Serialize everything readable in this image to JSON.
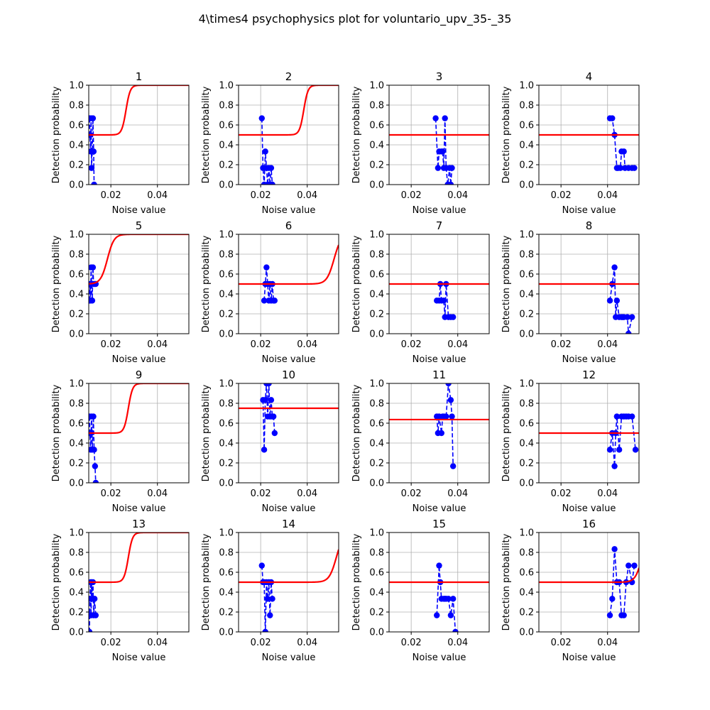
{
  "figure": {
    "suptitle": "4\\times4 psychophysics plot for voluntario_upv_35-_35"
  },
  "chart_data": {
    "type": "line",
    "layout": "4x4 grid",
    "xlabel": "Noise value",
    "ylabel": "Detection probability",
    "xlim": [
      0.0105,
      0.0535
    ],
    "ylim": [
      0,
      1
    ],
    "xticks": [
      "0.02",
      "0.04"
    ],
    "yticks": [
      "0.0",
      "0.2",
      "0.4",
      "0.6",
      "0.8",
      "1.0"
    ],
    "grid": true,
    "colors": {
      "observed": "#0000ff",
      "fit": "#ff0000",
      "grid": "#b0b0b0"
    },
    "observed_style": "blue dashed line with circle markers",
    "fit_style": "red solid sigmoid curve",
    "panels": [
      {
        "title": "1",
        "observed": [
          [
            0.0108,
            0.667
          ],
          [
            0.011,
            0.5
          ],
          [
            0.0113,
            0.333
          ],
          [
            0.0115,
            0.667
          ],
          [
            0.0117,
            0.167
          ],
          [
            0.012,
            0.333
          ],
          [
            0.0123,
            0.667
          ],
          [
            0.0126,
            0.333
          ],
          [
            0.0128,
            0.0
          ]
        ],
        "fit": {
          "base": 0.5,
          "top": 1.0,
          "mid": 0.0265,
          "slope": 1100
        }
      },
      {
        "title": "2",
        "observed": [
          [
            0.0205,
            0.667
          ],
          [
            0.021,
            0.167
          ],
          [
            0.0215,
            0.0
          ],
          [
            0.022,
            0.333
          ],
          [
            0.0225,
            0.167
          ],
          [
            0.023,
            0.0
          ],
          [
            0.0235,
            0.167
          ],
          [
            0.024,
            0.0
          ],
          [
            0.0245,
            0.167
          ],
          [
            0.025,
            0.0
          ]
        ],
        "fit": {
          "base": 0.5,
          "top": 1.0,
          "mid": 0.0385,
          "slope": 1100
        }
      },
      {
        "title": "3",
        "observed": [
          [
            0.0305,
            0.667
          ],
          [
            0.0315,
            0.167
          ],
          [
            0.032,
            0.333
          ],
          [
            0.033,
            0.333
          ],
          [
            0.0335,
            0.333
          ],
          [
            0.034,
            0.167
          ],
          [
            0.0345,
            0.667
          ],
          [
            0.035,
            0.167
          ],
          [
            0.0357,
            0.0
          ],
          [
            0.0365,
            0.167
          ],
          [
            0.037,
            0.0
          ],
          [
            0.0375,
            0.167
          ]
        ],
        "fit": {
          "base": 0.5,
          "top": 0.5,
          "mid": 0.03,
          "slope": 0
        }
      },
      {
        "title": "4",
        "observed": [
          [
            0.041,
            0.667
          ],
          [
            0.042,
            0.667
          ],
          [
            0.043,
            0.5
          ],
          [
            0.044,
            0.167
          ],
          [
            0.0445,
            0.167
          ],
          [
            0.0455,
            0.167
          ],
          [
            0.046,
            0.333
          ],
          [
            0.047,
            0.333
          ],
          [
            0.0475,
            0.167
          ],
          [
            0.049,
            0.167
          ],
          [
            0.0505,
            0.167
          ],
          [
            0.0515,
            0.167
          ]
        ],
        "fit": {
          "base": 0.5,
          "top": 0.5,
          "mid": 0.03,
          "slope": 0
        }
      },
      {
        "title": "5",
        "observed": [
          [
            0.0108,
            0.333
          ],
          [
            0.011,
            0.5
          ],
          [
            0.0113,
            0.333
          ],
          [
            0.0115,
            0.667
          ],
          [
            0.0117,
            0.5
          ],
          [
            0.012,
            0.333
          ],
          [
            0.0123,
            0.667
          ],
          [
            0.0126,
            0.5
          ],
          [
            0.013,
            0.5
          ],
          [
            0.0135,
            0.5
          ]
        ],
        "fit": {
          "base": 0.5,
          "top": 1.0,
          "mid": 0.0185,
          "slope": 700
        }
      },
      {
        "title": "6",
        "observed": [
          [
            0.0215,
            0.333
          ],
          [
            0.022,
            0.5
          ],
          [
            0.0225,
            0.667
          ],
          [
            0.023,
            0.5
          ],
          [
            0.0235,
            0.333
          ],
          [
            0.024,
            0.5
          ],
          [
            0.0245,
            0.333
          ],
          [
            0.025,
            0.5
          ],
          [
            0.0255,
            0.333
          ],
          [
            0.026,
            0.333
          ]
        ],
        "fit": {
          "base": 0.5,
          "top": 1.0,
          "mid": 0.0515,
          "slope": 650
        }
      },
      {
        "title": "7",
        "observed": [
          [
            0.031,
            0.333
          ],
          [
            0.032,
            0.333
          ],
          [
            0.0325,
            0.5
          ],
          [
            0.033,
            0.333
          ],
          [
            0.034,
            0.333
          ],
          [
            0.0345,
            0.167
          ],
          [
            0.035,
            0.5
          ],
          [
            0.036,
            0.167
          ],
          [
            0.037,
            0.167
          ],
          [
            0.038,
            0.167
          ]
        ],
        "fit": {
          "base": 0.5,
          "top": 1.0,
          "mid": 0.065,
          "slope": 700
        }
      },
      {
        "title": "8",
        "observed": [
          [
            0.041,
            0.333
          ],
          [
            0.042,
            0.5
          ],
          [
            0.043,
            0.667
          ],
          [
            0.0435,
            0.167
          ],
          [
            0.044,
            0.333
          ],
          [
            0.045,
            0.167
          ],
          [
            0.046,
            0.167
          ],
          [
            0.0465,
            0.167
          ],
          [
            0.047,
            0.167
          ],
          [
            0.0485,
            0.167
          ],
          [
            0.049,
            0.0
          ],
          [
            0.0505,
            0.167
          ]
        ],
        "fit": {
          "base": 0.5,
          "top": 0.5,
          "mid": 0.03,
          "slope": 0
        }
      },
      {
        "title": "9",
        "observed": [
          [
            0.0108,
            0.667
          ],
          [
            0.011,
            0.5
          ],
          [
            0.0113,
            0.333
          ],
          [
            0.0115,
            0.5
          ],
          [
            0.0117,
            0.667
          ],
          [
            0.012,
            0.333
          ],
          [
            0.0125,
            0.667
          ],
          [
            0.0128,
            0.333
          ],
          [
            0.0132,
            0.167
          ],
          [
            0.0135,
            0.0
          ]
        ],
        "fit": {
          "base": 0.5,
          "top": 1.0,
          "mid": 0.0275,
          "slope": 1100
        }
      },
      {
        "title": "10",
        "observed": [
          [
            0.021,
            0.833
          ],
          [
            0.0215,
            0.333
          ],
          [
            0.022,
            0.833
          ],
          [
            0.0225,
            1.0
          ],
          [
            0.023,
            0.667
          ],
          [
            0.0235,
            1.0
          ],
          [
            0.024,
            0.667
          ],
          [
            0.0245,
            0.833
          ],
          [
            0.025,
            0.667
          ],
          [
            0.0255,
            0.667
          ],
          [
            0.026,
            0.5
          ]
        ],
        "fit": {
          "base": 0.75,
          "top": 0.75,
          "mid": 0.03,
          "slope": 0
        }
      },
      {
        "title": "11",
        "observed": [
          [
            0.031,
            0.667
          ],
          [
            0.0315,
            0.5
          ],
          [
            0.032,
            0.667
          ],
          [
            0.033,
            0.5
          ],
          [
            0.0335,
            0.667
          ],
          [
            0.034,
            0.667
          ],
          [
            0.035,
            0.667
          ],
          [
            0.036,
            1.0
          ],
          [
            0.037,
            0.833
          ],
          [
            0.0375,
            0.667
          ],
          [
            0.038,
            0.167
          ]
        ],
        "fit": {
          "base": 0.636,
          "top": 0.636,
          "mid": 0.03,
          "slope": 0
        }
      },
      {
        "title": "12",
        "observed": [
          [
            0.041,
            0.333
          ],
          [
            0.042,
            0.5
          ],
          [
            0.043,
            0.167
          ],
          [
            0.0435,
            0.5
          ],
          [
            0.044,
            0.667
          ],
          [
            0.045,
            0.333
          ],
          [
            0.046,
            0.667
          ],
          [
            0.047,
            0.667
          ],
          [
            0.048,
            0.667
          ],
          [
            0.049,
            0.667
          ],
          [
            0.0505,
            0.667
          ],
          [
            0.052,
            0.333
          ]
        ],
        "fit": {
          "base": 0.5,
          "top": 0.5,
          "mid": 0.03,
          "slope": 0
        }
      },
      {
        "title": "13",
        "observed": [
          [
            0.0108,
            0.0
          ],
          [
            0.011,
            0.333
          ],
          [
            0.0113,
            0.5
          ],
          [
            0.0115,
            0.167
          ],
          [
            0.0117,
            0.5
          ],
          [
            0.012,
            0.333
          ],
          [
            0.0123,
            0.5
          ],
          [
            0.0126,
            0.167
          ],
          [
            0.013,
            0.333
          ],
          [
            0.0135,
            0.167
          ]
        ],
        "fit": {
          "base": 0.5,
          "top": 1.0,
          "mid": 0.0275,
          "slope": 1100
        }
      },
      {
        "title": "14",
        "observed": [
          [
            0.0205,
            0.667
          ],
          [
            0.021,
            0.5
          ],
          [
            0.0215,
            0.5
          ],
          [
            0.022,
            0.0
          ],
          [
            0.0225,
            0.5
          ],
          [
            0.023,
            0.333
          ],
          [
            0.0235,
            0.5
          ],
          [
            0.024,
            0.167
          ],
          [
            0.0245,
            0.5
          ],
          [
            0.025,
            0.333
          ]
        ],
        "fit": {
          "base": 0.5,
          "top": 1.0,
          "mid": 0.0525,
          "slope": 650
        }
      },
      {
        "title": "15",
        "observed": [
          [
            0.031,
            0.167
          ],
          [
            0.032,
            0.667
          ],
          [
            0.0325,
            0.5
          ],
          [
            0.033,
            0.333
          ],
          [
            0.034,
            0.333
          ],
          [
            0.0345,
            0.333
          ],
          [
            0.035,
            0.333
          ],
          [
            0.036,
            0.333
          ],
          [
            0.037,
            0.167
          ],
          [
            0.038,
            0.333
          ],
          [
            0.039,
            0.0
          ]
        ],
        "fit": {
          "base": 0.5,
          "top": 0.5,
          "mid": 0.03,
          "slope": 0
        }
      },
      {
        "title": "16",
        "observed": [
          [
            0.041,
            0.167
          ],
          [
            0.042,
            0.333
          ],
          [
            0.043,
            0.833
          ],
          [
            0.044,
            0.5
          ],
          [
            0.045,
            0.5
          ],
          [
            0.046,
            0.167
          ],
          [
            0.047,
            0.167
          ],
          [
            0.048,
            0.5
          ],
          [
            0.049,
            0.667
          ],
          [
            0.0505,
            0.5
          ],
          [
            0.0515,
            0.667
          ]
        ],
        "fit": {
          "base": 0.5,
          "top": 1.0,
          "mid": 0.0548,
          "slope": 700
        }
      }
    ]
  }
}
